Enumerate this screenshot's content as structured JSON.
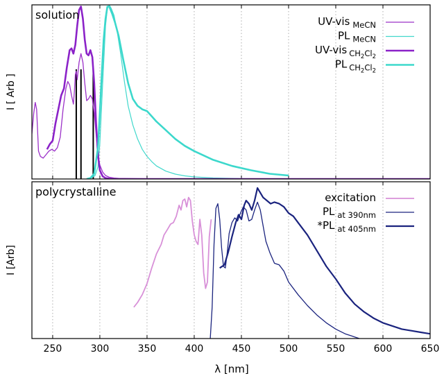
{
  "chart_data": [
    {
      "type": "line",
      "panel_label": "solution",
      "ylabel": "I [ Arb ]",
      "xlim": [
        228,
        650
      ],
      "ylim": [
        0,
        1
      ],
      "y_ticks_shown": false,
      "grid": {
        "vertical": true,
        "horizontal": false,
        "x_positions": [
          250,
          300,
          350,
          400,
          450,
          500,
          550,
          600
        ]
      },
      "legend": {
        "position": "top-right",
        "entries": [
          {
            "main": "UV-vis",
            "sub": "MeCN"
          },
          {
            "main": "PL",
            "sub": "MeCN"
          },
          {
            "main": "UV-vis",
            "sub": "CH2Cl2",
            "sub_parts": [
              "CH",
              "2",
              "Cl",
              "2"
            ]
          },
          {
            "main": "PL",
            "sub": "CH2Cl2",
            "sub_parts": [
              "CH",
              "2",
              "Cl",
              "2"
            ]
          }
        ]
      },
      "series": [
        {
          "name": "UV-vis MeCN",
          "color": "#9b30c8",
          "width": 1.3,
          "x": [
            228,
            230,
            231.5,
            233,
            235,
            237,
            240,
            243,
            246,
            249,
            252,
            255,
            258,
            261,
            264,
            266,
            268,
            270,
            272,
            273,
            274,
            275,
            276,
            278,
            280,
            282,
            284,
            286,
            288,
            290,
            292,
            294,
            296,
            298,
            300,
            303,
            306,
            310,
            315,
            320,
            340,
            370,
            650
          ],
          "y": [
            0.26,
            0.38,
            0.44,
            0.4,
            0.16,
            0.13,
            0.12,
            0.14,
            0.16,
            0.17,
            0.16,
            0.18,
            0.24,
            0.4,
            0.52,
            0.56,
            0.54,
            0.48,
            0.43,
            0.5,
            0.6,
            0.62,
            0.57,
            0.67,
            0.72,
            0.67,
            0.55,
            0.45,
            0.46,
            0.48,
            0.46,
            0.38,
            0.26,
            0.14,
            0.08,
            0.04,
            0.02,
            0.01,
            0.005,
            0.003,
            0.002,
            0.0,
            0.0
          ]
        },
        {
          "name": "PL MeCN",
          "color": "#40d8cc",
          "width": 1.2,
          "x": [
            286,
            290,
            295,
            298,
            300,
            303,
            306,
            308,
            310,
            312,
            315,
            318,
            322,
            326,
            330,
            335,
            340,
            345,
            350,
            355,
            360,
            370,
            380,
            390,
            400,
            420,
            450,
            500,
            650
          ],
          "y": [
            0.0,
            0.003,
            0.02,
            0.07,
            0.2,
            0.55,
            0.88,
            0.98,
            1.0,
            0.98,
            0.94,
            0.86,
            0.72,
            0.56,
            0.42,
            0.31,
            0.23,
            0.17,
            0.13,
            0.1,
            0.075,
            0.045,
            0.028,
            0.018,
            0.012,
            0.006,
            0.002,
            0.0,
            0.0
          ]
        },
        {
          "name": "UV-vis CH2Cl2",
          "color": "#8b22c8",
          "width": 2.6,
          "x": [
            244,
            247,
            250,
            253,
            256,
            259,
            262,
            265,
            268,
            270,
            272,
            274,
            276,
            278,
            280,
            282,
            284,
            286,
            288,
            290,
            292,
            294,
            296,
            298,
            300,
            303,
            306,
            310,
            320,
            340,
            650
          ],
          "y": [
            0.17,
            0.2,
            0.22,
            0.32,
            0.4,
            0.48,
            0.52,
            0.64,
            0.74,
            0.75,
            0.72,
            0.77,
            0.88,
            0.97,
            0.99,
            0.92,
            0.8,
            0.72,
            0.71,
            0.74,
            0.7,
            0.55,
            0.32,
            0.14,
            0.05,
            0.015,
            0.005,
            0.002,
            0.0,
            0.0,
            0.0
          ]
        },
        {
          "name": "PL CH2Cl2",
          "color": "#3cd8cc",
          "width": 2.6,
          "x": [
            286,
            290,
            294,
            298,
            300,
            302,
            304,
            306,
            308,
            310,
            313,
            316,
            320,
            325,
            330,
            335,
            340,
            345,
            350,
            355,
            360,
            370,
            380,
            390,
            400,
            420,
            440,
            460,
            480,
            500
          ],
          "y": [
            0.0,
            0.005,
            0.03,
            0.18,
            0.38,
            0.6,
            0.8,
            0.92,
            0.99,
            0.99,
            0.95,
            0.9,
            0.82,
            0.68,
            0.55,
            0.46,
            0.42,
            0.4,
            0.39,
            0.36,
            0.33,
            0.28,
            0.23,
            0.19,
            0.16,
            0.11,
            0.075,
            0.05,
            0.03,
            0.02
          ]
        }
      ],
      "stick_lines": {
        "color": "#000000",
        "x": [
          275,
          280,
          293
        ],
        "heights": [
          0.63,
          0.63,
          0.63
        ]
      }
    },
    {
      "type": "line",
      "panel_label": "polycrystalline",
      "ylabel": "I [Arb]",
      "xlabel": "λ [nm]",
      "xlim": [
        228,
        650
      ],
      "ylim": [
        0,
        1
      ],
      "x_ticks": [
        250,
        300,
        350,
        400,
        450,
        500,
        550,
        600,
        650
      ],
      "y_ticks_shown": false,
      "grid": {
        "vertical": true,
        "horizontal": false,
        "x_positions": [
          250,
          300,
          350,
          400,
          450,
          500,
          550,
          600
        ]
      },
      "legend": {
        "position": "top-right",
        "entries": [
          {
            "main": "excitation",
            "sub": ""
          },
          {
            "main": "PL",
            "sub": "at 390nm"
          },
          {
            "main": "*PL",
            "sub": "at 405nm"
          }
        ]
      },
      "series": [
        {
          "name": "excitation",
          "color": "#d890d8",
          "width": 1.8,
          "x": [
            336,
            340,
            345,
            350,
            355,
            360,
            365,
            368,
            372,
            375,
            378,
            381,
            384,
            386,
            388,
            390,
            392,
            394,
            396,
            398,
            400,
            402,
            404,
            406,
            408,
            410,
            412,
            414,
            416,
            418
          ],
          "y": [
            0.2,
            0.23,
            0.28,
            0.35,
            0.45,
            0.54,
            0.6,
            0.66,
            0.7,
            0.73,
            0.74,
            0.78,
            0.85,
            0.82,
            0.88,
            0.89,
            0.84,
            0.9,
            0.88,
            0.75,
            0.66,
            0.62,
            0.6,
            0.76,
            0.66,
            0.42,
            0.32,
            0.36,
            0.65,
            0.76
          ]
        },
        {
          "name": "PL at 390nm",
          "color": "#1a237e",
          "width": 1.3,
          "x": [
            417,
            419,
            421,
            423,
            425,
            427,
            429,
            431,
            433,
            435,
            437,
            440,
            443,
            446,
            449,
            452,
            455,
            458,
            461,
            464,
            467,
            470,
            473,
            476,
            480,
            485,
            490,
            495,
            500,
            510,
            520,
            530,
            540,
            550,
            560,
            570,
            575
          ],
          "y": [
            0.0,
            0.2,
            0.6,
            0.83,
            0.86,
            0.76,
            0.58,
            0.46,
            0.45,
            0.55,
            0.67,
            0.74,
            0.77,
            0.75,
            0.8,
            0.84,
            0.82,
            0.75,
            0.76,
            0.82,
            0.87,
            0.82,
            0.72,
            0.62,
            0.55,
            0.48,
            0.47,
            0.43,
            0.36,
            0.28,
            0.21,
            0.15,
            0.1,
            0.06,
            0.03,
            0.01,
            0.0
          ]
        },
        {
          "name": "*PL at 405nm",
          "color": "#1a237e",
          "width": 2.2,
          "x": [
            427,
            432,
            436,
            440,
            444,
            447,
            450,
            453,
            455,
            458,
            461,
            464,
            467,
            470,
            473,
            477,
            481,
            485,
            490,
            495,
            500,
            505,
            510,
            520,
            530,
            540,
            550,
            560,
            570,
            580,
            590,
            600,
            610,
            620,
            630,
            640,
            650
          ],
          "y": [
            0.45,
            0.47,
            0.55,
            0.65,
            0.74,
            0.79,
            0.76,
            0.85,
            0.88,
            0.86,
            0.82,
            0.88,
            0.96,
            0.93,
            0.9,
            0.88,
            0.86,
            0.87,
            0.86,
            0.84,
            0.8,
            0.78,
            0.74,
            0.66,
            0.56,
            0.46,
            0.38,
            0.29,
            0.22,
            0.17,
            0.13,
            0.1,
            0.08,
            0.06,
            0.05,
            0.04,
            0.03
          ]
        }
      ]
    }
  ]
}
